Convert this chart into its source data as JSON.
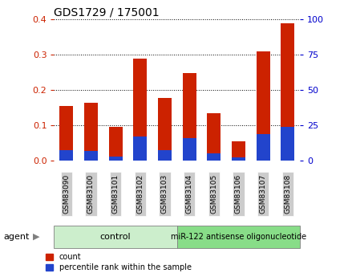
{
  "title": "GDS1729 / 175001",
  "samples": [
    "GSM83090",
    "GSM83100",
    "GSM83101",
    "GSM83102",
    "GSM83103",
    "GSM83104",
    "GSM83105",
    "GSM83106",
    "GSM83107",
    "GSM83108"
  ],
  "count_values": [
    0.155,
    0.163,
    0.095,
    0.29,
    0.178,
    0.247,
    0.135,
    0.055,
    0.31,
    0.388
  ],
  "percentile_values": [
    0.03,
    0.028,
    0.012,
    0.068,
    0.03,
    0.063,
    0.02,
    0.01,
    0.075,
    0.095
  ],
  "bar_width": 0.55,
  "red_color": "#cc2200",
  "blue_color": "#2244cc",
  "ylim_left": [
    0,
    0.4
  ],
  "ylim_right": [
    0,
    100
  ],
  "yticks_left": [
    0,
    0.1,
    0.2,
    0.3,
    0.4
  ],
  "yticks_right": [
    0,
    25,
    50,
    75,
    100
  ],
  "grid_color": "black",
  "agent_label": "agent",
  "group1_label": "control",
  "group2_label": "miR-122 antisense oligonucleotide",
  "group1_count": 5,
  "group2_count": 5,
  "legend_count_label": "count",
  "legend_percentile_label": "percentile rank within the sample",
  "group1_color": "#cceecc",
  "group2_color": "#88dd88",
  "tick_bg_color": "#cccccc",
  "bg_color": "#ffffff",
  "plot_bg_color": "#ffffff",
  "left_tick_color": "#cc2200",
  "right_tick_color": "#0000cc"
}
